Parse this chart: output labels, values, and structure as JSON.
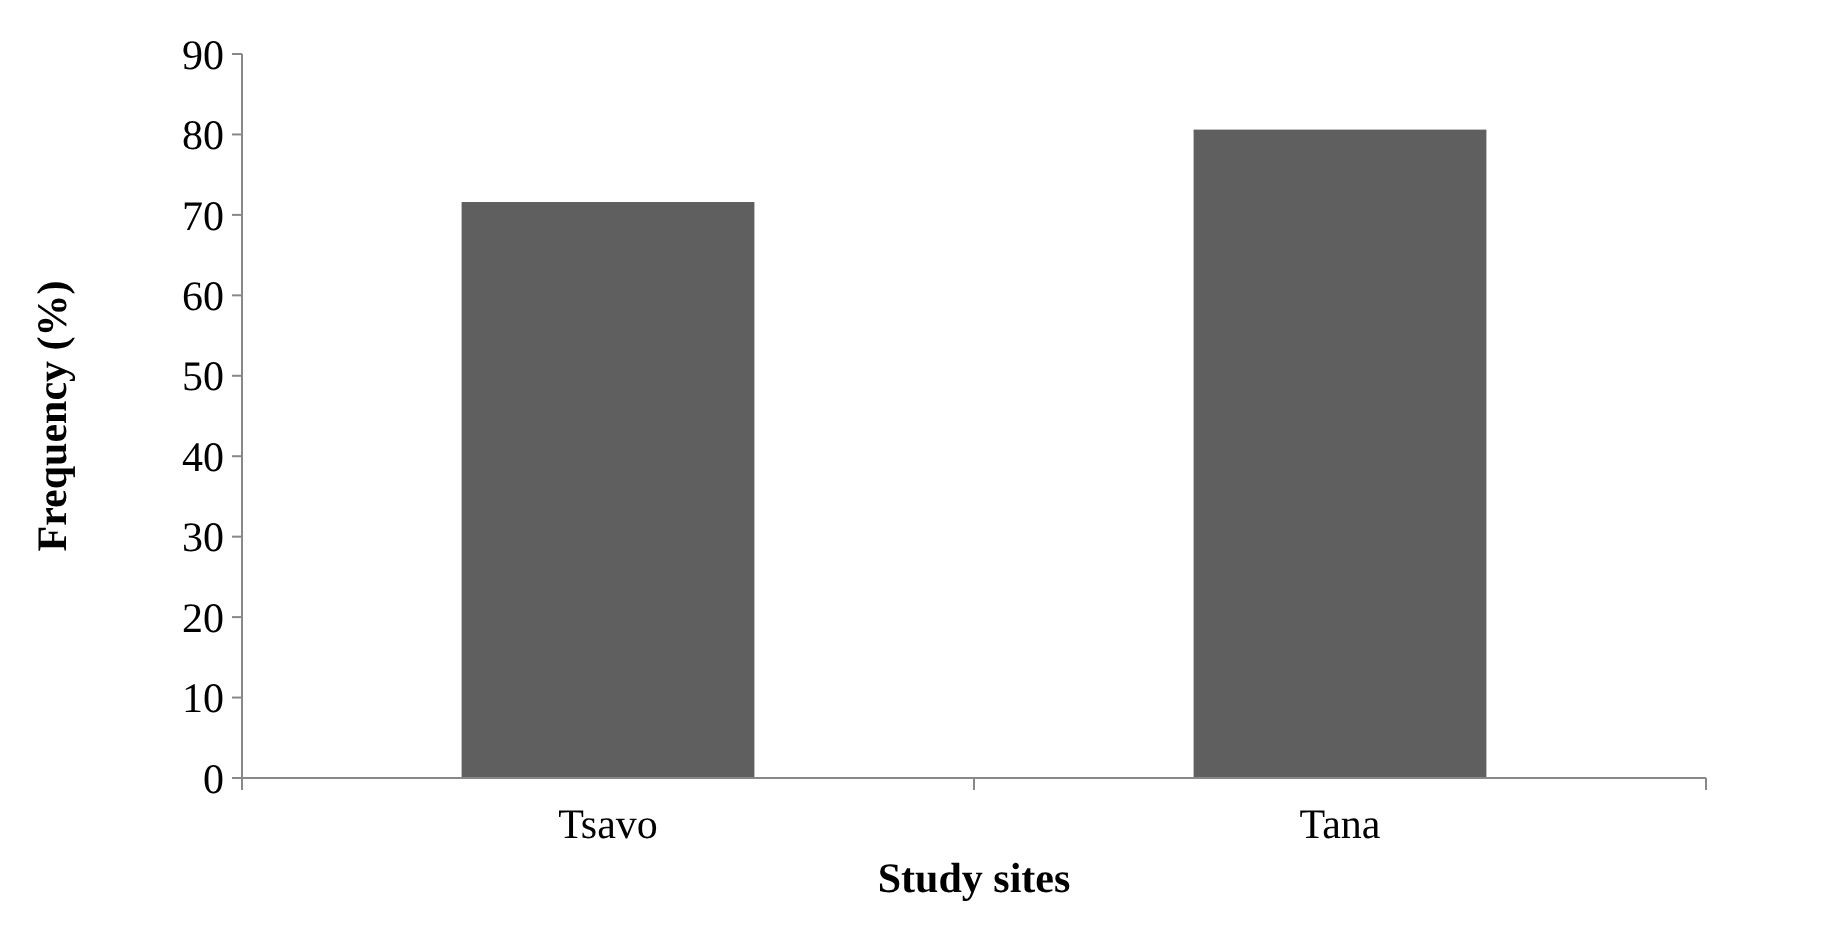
{
  "chart_data": {
    "type": "bar",
    "xlabel": "Study sites",
    "ylabel": "Frequency (%)",
    "categories": [
      "Tsavo",
      "Tana"
    ],
    "values": [
      71.6,
      80.6
    ],
    "color": "#5f5f5f",
    "ylim": [
      0,
      90
    ],
    "yticks": [
      0,
      10,
      20,
      30,
      40,
      50,
      60,
      70,
      80,
      90
    ],
    "grid": false
  }
}
